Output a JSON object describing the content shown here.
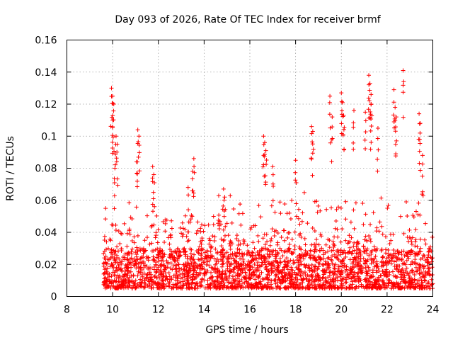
{
  "chart_data": {
    "type": "scatter",
    "title": "Day 093 of 2026, Rate Of TEC Index for receiver brmf",
    "xlabel": "GPS time / hours",
    "ylabel": "ROTI / TECUs",
    "xlim": [
      8,
      24
    ],
    "ylim": [
      0,
      0.16
    ],
    "xticks": [
      8,
      10,
      12,
      14,
      16,
      18,
      20,
      22,
      24
    ],
    "xtick_labels": [
      "8",
      "10",
      "12",
      "14",
      "16",
      "18",
      "20",
      "22",
      "24"
    ],
    "yticks": [
      0,
      0.02,
      0.04,
      0.06,
      0.08,
      0.1,
      0.12,
      0.14,
      0.16
    ],
    "ytick_labels": [
      "0",
      "0.02",
      "0.04",
      "0.06",
      "0.08",
      "0.1",
      "0.12",
      "0.14",
      "0.16"
    ],
    "grid": true,
    "marker": "+",
    "color": "#ff0000",
    "series": [
      {
        "name": "ROTI",
        "x_range": [
          9.6,
          24.0
        ],
        "typical_range": [
          0.005,
          0.03
        ],
        "peaks": [
          {
            "x": 9.95,
            "y": 0.13
          },
          {
            "x": 10.0,
            "y": 0.125
          },
          {
            "x": 10.05,
            "y": 0.12
          },
          {
            "x": 10.0,
            "y": 0.11
          },
          {
            "x": 10.15,
            "y": 0.1
          },
          {
            "x": 10.2,
            "y": 0.095
          },
          {
            "x": 10.1,
            "y": 0.08
          },
          {
            "x": 11.1,
            "y": 0.104
          },
          {
            "x": 11.15,
            "y": 0.1
          },
          {
            "x": 11.05,
            "y": 0.084
          },
          {
            "x": 11.75,
            "y": 0.081
          },
          {
            "x": 11.8,
            "y": 0.076
          },
          {
            "x": 13.55,
            "y": 0.086
          },
          {
            "x": 13.5,
            "y": 0.078
          },
          {
            "x": 13.3,
            "y": 0.068
          },
          {
            "x": 14.85,
            "y": 0.067
          },
          {
            "x": 14.9,
            "y": 0.062
          },
          {
            "x": 16.6,
            "y": 0.1
          },
          {
            "x": 16.65,
            "y": 0.096
          },
          {
            "x": 16.7,
            "y": 0.091
          },
          {
            "x": 17.0,
            "y": 0.081
          },
          {
            "x": 18.0,
            "y": 0.085
          },
          {
            "x": 18.7,
            "y": 0.106
          },
          {
            "x": 18.75,
            "y": 0.103
          },
          {
            "x": 19.5,
            "y": 0.125
          },
          {
            "x": 19.6,
            "y": 0.112
          },
          {
            "x": 20.0,
            "y": 0.127
          },
          {
            "x": 20.05,
            "y": 0.121
          },
          {
            "x": 20.1,
            "y": 0.113
          },
          {
            "x": 20.55,
            "y": 0.116
          },
          {
            "x": 21.05,
            "y": 0.115
          },
          {
            "x": 21.2,
            "y": 0.138
          },
          {
            "x": 21.25,
            "y": 0.133
          },
          {
            "x": 21.3,
            "y": 0.126
          },
          {
            "x": 21.3,
            "y": 0.12
          },
          {
            "x": 21.6,
            "y": 0.105
          },
          {
            "x": 22.3,
            "y": 0.129
          },
          {
            "x": 22.35,
            "y": 0.118
          },
          {
            "x": 22.4,
            "y": 0.112
          },
          {
            "x": 22.7,
            "y": 0.141
          },
          {
            "x": 23.4,
            "y": 0.114
          },
          {
            "x": 23.45,
            "y": 0.108
          },
          {
            "x": 23.55,
            "y": 0.088
          }
        ]
      }
    ]
  }
}
